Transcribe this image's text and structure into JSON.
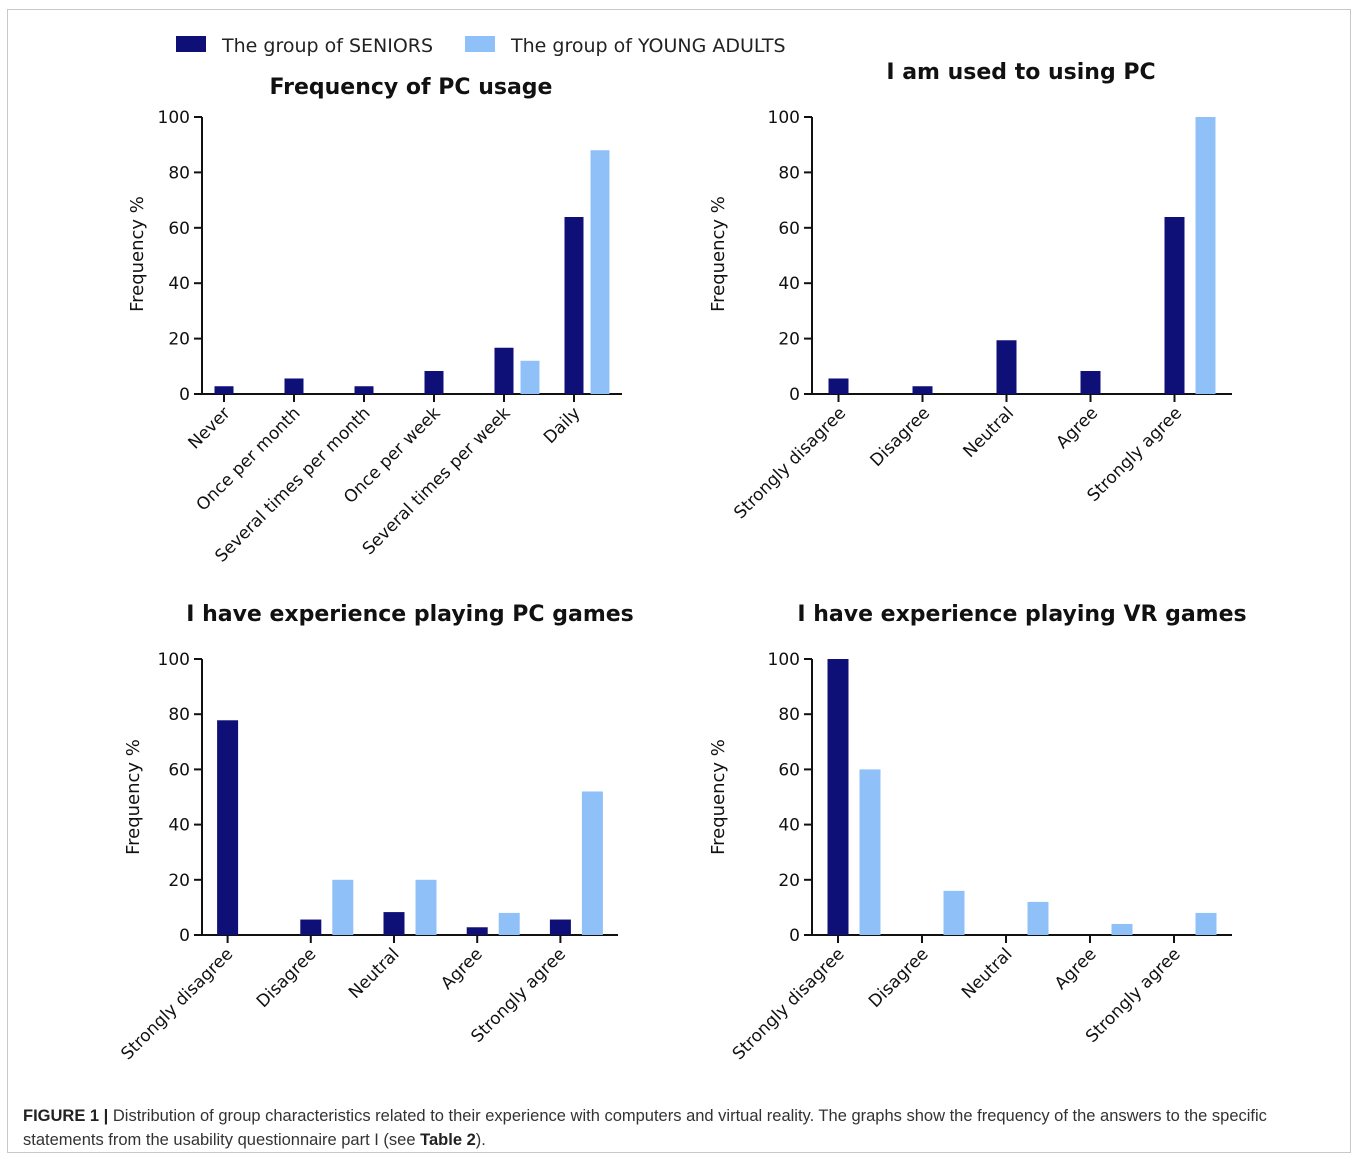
{
  "legend": {
    "items": [
      {
        "label": "The group of SENIORS",
        "color": "#0f0f78"
      },
      {
        "label": "The group of YOUNG ADULTS",
        "color": "#90c0f8"
      }
    ]
  },
  "chart_data": [
    {
      "type": "bar",
      "title": "Frequency of PC usage",
      "ylabel": "Frequency %",
      "xlabel": "",
      "ylim": [
        0,
        100
      ],
      "yticks": [
        0,
        20,
        40,
        60,
        80,
        100
      ],
      "categories": [
        "Never",
        "Once per month",
        "Several times per month",
        "Once per week",
        "Several times per week",
        "Daily"
      ],
      "series": [
        {
          "name": "The group of SENIORS",
          "values": [
            2.8,
            5.6,
            2.8,
            8.3,
            16.7,
            63.9
          ]
        },
        {
          "name": "The group of YOUNG ADULTS",
          "values": [
            0,
            0,
            0,
            0,
            12,
            88
          ]
        }
      ]
    },
    {
      "type": "bar",
      "title": "I am used to using PC",
      "ylabel": "Frequency %",
      "xlabel": "",
      "ylim": [
        0,
        100
      ],
      "yticks": [
        0,
        20,
        40,
        60,
        80,
        100
      ],
      "categories": [
        "Strongly disagree",
        "Disagree",
        "Neutral",
        "Agree",
        "Strongly agree"
      ],
      "series": [
        {
          "name": "The group of SENIORS",
          "values": [
            5.6,
            2.8,
            19.4,
            8.3,
            63.9
          ]
        },
        {
          "name": "The group of YOUNG ADULTS",
          "values": [
            0,
            0,
            0,
            0,
            100
          ]
        }
      ]
    },
    {
      "type": "bar",
      "title": "I have experience playing PC games",
      "ylabel": "Frequency %",
      "xlabel": "",
      "ylim": [
        0,
        100
      ],
      "yticks": [
        0,
        20,
        40,
        60,
        80,
        100
      ],
      "categories": [
        "Strongly disagree",
        "Disagree",
        "Neutral",
        "Agree",
        "Strongly agree"
      ],
      "series": [
        {
          "name": "The group of SENIORS",
          "values": [
            77.8,
            5.6,
            8.3,
            2.8,
            5.6
          ]
        },
        {
          "name": "The group of YOUNG ADULTS",
          "values": [
            0,
            20,
            20,
            8,
            52
          ]
        }
      ]
    },
    {
      "type": "bar",
      "title": "I have experience playing VR games",
      "ylabel": "Frequency %",
      "xlabel": "",
      "ylim": [
        0,
        100
      ],
      "yticks": [
        0,
        20,
        40,
        60,
        80,
        100
      ],
      "categories": [
        "Strongly disagree",
        "Disagree",
        "Neutral",
        "Agree",
        "Strongly agree"
      ],
      "series": [
        {
          "name": "The group of SENIORS",
          "values": [
            100,
            0,
            0,
            0,
            0
          ]
        },
        {
          "name": "The group of YOUNG ADULTS",
          "values": [
            60,
            16,
            12,
            4,
            8
          ]
        }
      ]
    }
  ],
  "caption": {
    "label": "FIGURE 1 |",
    "text_before": " Distribution of group characteristics related to their experience with computers and virtual reality. The graphs show the frequency of the answers to the specific statements from the usability questionnaire part I (see ",
    "table_ref": "Table 2",
    "text_after": ")."
  }
}
